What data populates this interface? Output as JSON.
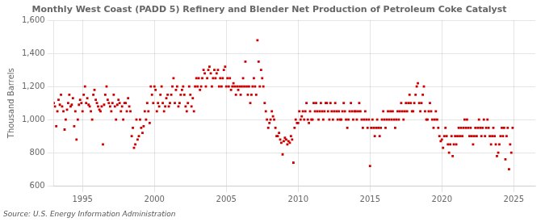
{
  "chart_data": {
    "type": "scatter",
    "title": "Monthly West Coast (PADD 5) Refinery and Blender Net Production of Petroleum Coke Catalyst",
    "ylabel": "Thousand Barrels",
    "source": "Source: U.S. Energy Information Administration",
    "color": "#cc0000",
    "marker": "square",
    "grid": true,
    "xlim": [
      1993.0,
      2026.5
    ],
    "ylim": [
      600,
      1600
    ],
    "xticks": [
      1995,
      2000,
      2005,
      2010,
      2015,
      2020,
      2025
    ],
    "yticks": [
      600,
      800,
      {
        "value": 1000,
        "label": "1,000"
      },
      {
        "value": 1200,
        "label": "1,200"
      },
      {
        "value": 1400,
        "label": "1,400"
      },
      {
        "value": 1600,
        "label": "1,600"
      }
    ],
    "x": [
      1993.0,
      1993.08,
      1993.17,
      1993.25,
      1993.33,
      1993.42,
      1993.5,
      1993.58,
      1993.67,
      1993.75,
      1993.83,
      1993.92,
      1994.0,
      1994.08,
      1994.17,
      1994.25,
      1994.33,
      1994.42,
      1994.5,
      1994.58,
      1994.67,
      1994.75,
      1994.83,
      1994.92,
      1995.0,
      1995.08,
      1995.17,
      1995.25,
      1995.33,
      1995.42,
      1995.5,
      1995.58,
      1995.67,
      1995.75,
      1995.83,
      1995.92,
      1996.0,
      1996.08,
      1996.17,
      1996.25,
      1996.33,
      1996.42,
      1996.5,
      1996.58,
      1996.67,
      1996.75,
      1996.83,
      1996.92,
      1997.0,
      1997.08,
      1997.17,
      1997.25,
      1997.33,
      1997.42,
      1997.5,
      1997.58,
      1997.67,
      1997.75,
      1997.83,
      1997.92,
      1998.0,
      1998.08,
      1998.17,
      1998.25,
      1998.33,
      1998.42,
      1998.5,
      1998.58,
      1998.67,
      1998.75,
      1998.83,
      1998.92,
      1999.0,
      1999.08,
      1999.17,
      1999.25,
      1999.33,
      1999.42,
      1999.5,
      1999.58,
      1999.67,
      1999.75,
      1999.83,
      1999.92,
      2000.0,
      2000.08,
      2000.17,
      2000.25,
      2000.33,
      2000.42,
      2000.5,
      2000.58,
      2000.67,
      2000.75,
      2000.83,
      2000.92,
      2001.0,
      2001.08,
      2001.17,
      2001.25,
      2001.33,
      2001.42,
      2001.5,
      2001.58,
      2001.67,
      2001.75,
      2001.83,
      2001.92,
      2002.0,
      2002.08,
      2002.17,
      2002.25,
      2002.33,
      2002.42,
      2002.5,
      2002.58,
      2002.67,
      2002.75,
      2002.83,
      2002.92,
      2003.0,
      2003.08,
      2003.17,
      2003.25,
      2003.33,
      2003.42,
      2003.5,
      2003.58,
      2003.67,
      2003.75,
      2003.83,
      2003.92,
      2004.0,
      2004.08,
      2004.17,
      2004.25,
      2004.33,
      2004.42,
      2004.5,
      2004.58,
      2004.67,
      2004.75,
      2004.83,
      2004.92,
      2005.0,
      2005.08,
      2005.17,
      2005.25,
      2005.33,
      2005.42,
      2005.5,
      2005.58,
      2005.67,
      2005.75,
      2005.83,
      2005.92,
      2006.0,
      2006.08,
      2006.17,
      2006.25,
      2006.33,
      2006.42,
      2006.5,
      2006.58,
      2006.67,
      2006.75,
      2006.83,
      2006.92,
      2007.0,
      2007.08,
      2007.17,
      2007.25,
      2007.33,
      2007.42,
      2007.5,
      2007.58,
      2007.67,
      2007.75,
      2007.83,
      2007.92,
      2008.0,
      2008.08,
      2008.17,
      2008.25,
      2008.33,
      2008.42,
      2008.5,
      2008.58,
      2008.67,
      2008.75,
      2008.83,
      2008.92,
      2009.0,
      2009.08,
      2009.17,
      2009.25,
      2009.33,
      2009.42,
      2009.5,
      2009.58,
      2009.67,
      2009.75,
      2009.83,
      2009.92,
      2010.0,
      2010.08,
      2010.17,
      2010.25,
      2010.33,
      2010.42,
      2010.5,
      2010.58,
      2010.67,
      2010.75,
      2010.83,
      2010.92,
      2011.0,
      2011.08,
      2011.17,
      2011.25,
      2011.33,
      2011.42,
      2011.5,
      2011.58,
      2011.67,
      2011.75,
      2011.83,
      2011.92,
      2012.0,
      2012.08,
      2012.17,
      2012.25,
      2012.33,
      2012.42,
      2012.5,
      2012.58,
      2012.67,
      2012.75,
      2012.83,
      2012.92,
      2013.0,
      2013.08,
      2013.17,
      2013.25,
      2013.33,
      2013.42,
      2013.5,
      2013.58,
      2013.67,
      2013.75,
      2013.83,
      2013.92,
      2014.0,
      2014.08,
      2014.17,
      2014.25,
      2014.33,
      2014.42,
      2014.5,
      2014.58,
      2014.67,
      2014.75,
      2014.83,
      2014.92,
      2015.0,
      2015.08,
      2015.17,
      2015.25,
      2015.33,
      2015.42,
      2015.5,
      2015.58,
      2015.67,
      2015.75,
      2015.83,
      2015.92,
      2016.0,
      2016.08,
      2016.17,
      2016.25,
      2016.33,
      2016.42,
      2016.5,
      2016.58,
      2016.67,
      2016.75,
      2016.83,
      2016.92,
      2017.0,
      2017.08,
      2017.17,
      2017.25,
      2017.33,
      2017.42,
      2017.5,
      2017.58,
      2017.67,
      2017.75,
      2017.83,
      2017.92,
      2018.0,
      2018.08,
      2018.17,
      2018.25,
      2018.33,
      2018.42,
      2018.5,
      2018.58,
      2018.67,
      2018.75,
      2018.83,
      2018.92,
      2019.0,
      2019.08,
      2019.17,
      2019.25,
      2019.33,
      2019.42,
      2019.5,
      2019.58,
      2019.67,
      2019.75,
      2019.83,
      2019.92,
      2020.0,
      2020.08,
      2020.17,
      2020.25,
      2020.33,
      2020.42,
      2020.5,
      2020.58,
      2020.67,
      2020.75,
      2020.83,
      2020.92,
      2021.0,
      2021.08,
      2021.17,
      2021.25,
      2021.33,
      2021.42,
      2021.5,
      2021.58,
      2021.67,
      2021.75,
      2021.83,
      2021.92,
      2022.0,
      2022.08,
      2022.17,
      2022.25,
      2022.33,
      2022.42,
      2022.5,
      2022.58,
      2022.67,
      2022.75,
      2022.83,
      2022.92,
      2023.0,
      2023.08,
      2023.17,
      2023.25,
      2023.33,
      2023.42,
      2023.5,
      2023.58,
      2023.67,
      2023.75,
      2023.83,
      2023.92,
      2024.0,
      2024.08,
      2024.17,
      2024.25,
      2024.33,
      2024.42,
      2024.5,
      2024.58,
      2024.67,
      2024.75,
      2024.83,
      2024.92
    ],
    "values": [
      1100,
      1080,
      960,
      1050,
      1120,
      1090,
      1150,
      1080,
      1050,
      940,
      1000,
      1060,
      1100,
      1150,
      1080,
      1090,
      1130,
      960,
      1050,
      880,
      1000,
      1090,
      1120,
      1100,
      1050,
      1150,
      1200,
      1100,
      1130,
      1090,
      1080,
      1050,
      1000,
      1150,
      1180,
      1120,
      1100,
      1080,
      1060,
      1050,
      1080,
      850,
      1090,
      1150,
      1200,
      1120,
      1100,
      1080,
      1050,
      1100,
      1150,
      1080,
      1000,
      1090,
      1120,
      1100,
      1050,
      1080,
      1000,
      1100,
      1100,
      1050,
      1130,
      1080,
      1050,
      900,
      950,
      830,
      850,
      1000,
      880,
      900,
      1000,
      950,
      920,
      960,
      1050,
      1000,
      1100,
      1050,
      980,
      1200,
      1150,
      1100,
      1200,
      1180,
      1050,
      1100,
      1080,
      1150,
      1200,
      1100,
      1050,
      1080,
      1130,
      1150,
      1080,
      1100,
      1150,
      1200,
      1250,
      1100,
      1180,
      1200,
      1080,
      1100,
      1150,
      1180,
      1200,
      1150,
      1080,
      1050,
      1100,
      1200,
      1150,
      1080,
      1130,
      1050,
      1200,
      1250,
      1200,
      1250,
      1180,
      1200,
      1250,
      1300,
      1280,
      1200,
      1250,
      1300,
      1320,
      1280,
      1200,
      1250,
      1300,
      1250,
      1280,
      1300,
      1200,
      1250,
      1200,
      1250,
      1300,
      1320,
      1200,
      1250,
      1200,
      1250,
      1180,
      1200,
      1220,
      1200,
      1150,
      1200,
      1180,
      1200,
      1150,
      1200,
      1250,
      1200,
      1350,
      1200,
      1150,
      1200,
      1100,
      1150,
      1200,
      1250,
      1200,
      1150,
      1480,
      1350,
      1200,
      1300,
      1250,
      1200,
      1100,
      1050,
      1000,
      950,
      980,
      1000,
      1050,
      1020,
      1000,
      950,
      900,
      900,
      920,
      880,
      860,
      790,
      870,
      890,
      880,
      850,
      870,
      860,
      900,
      880,
      740,
      950,
      1000,
      980,
      980,
      1050,
      1000,
      1020,
      1050,
      1000,
      1050,
      1100,
      1000,
      980,
      1050,
      1000,
      1000,
      1100,
      1050,
      1100,
      1050,
      1000,
      1050,
      1100,
      1050,
      1000,
      1050,
      1100,
      1100,
      1050,
      1000,
      1100,
      1050,
      1000,
      1050,
      1100,
      1050,
      1000,
      1050,
      1000,
      1000,
      1050,
      1100,
      1050,
      1000,
      950,
      1000,
      1050,
      1100,
      1050,
      1000,
      1050,
      1050,
      1000,
      1050,
      1100,
      1050,
      1000,
      950,
      1000,
      1050,
      1000,
      950,
      1000,
      720,
      950,
      1000,
      950,
      900,
      950,
      1000,
      950,
      900,
      950,
      1000,
      1050,
      1000,
      950,
      1000,
      1050,
      1000,
      1050,
      1000,
      1050,
      1000,
      950,
      1000,
      1050,
      1000,
      1050,
      1100,
      1050,
      1000,
      1050,
      1100,
      1050,
      1100,
      1150,
      1100,
      1050,
      1050,
      1100,
      1150,
      1200,
      1220,
      1100,
      1050,
      1100,
      1150,
      1200,
      1050,
      1000,
      1000,
      1050,
      1100,
      1050,
      1000,
      950,
      1000,
      1050,
      1000,
      950,
      900,
      870,
      880,
      830,
      900,
      950,
      900,
      850,
      800,
      850,
      900,
      780,
      850,
      900,
      850,
      900,
      950,
      900,
      950,
      900,
      950,
      1000,
      950,
      1000,
      950,
      900,
      950,
      900,
      850,
      900,
      950,
      900,
      950,
      1000,
      950,
      900,
      950,
      1000,
      900,
      950,
      1000,
      950,
      900,
      850,
      900,
      950,
      900,
      850,
      780,
      800,
      850,
      900,
      950,
      900,
      950,
      760,
      900,
      950,
      700,
      850,
      800,
      950
    ]
  }
}
